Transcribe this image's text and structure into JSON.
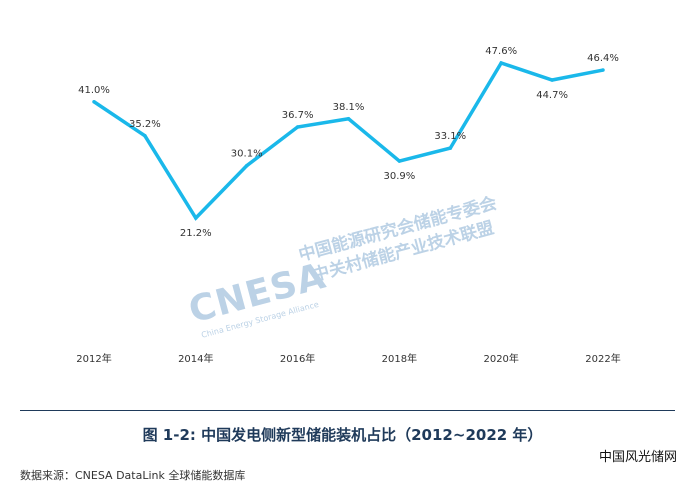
{
  "chart_data": {
    "type": "line",
    "x": [
      2012,
      2013,
      2014,
      2015,
      2016,
      2017,
      2018,
      2019,
      2020,
      2021,
      2022
    ],
    "values": [
      41.0,
      35.2,
      21.2,
      30.1,
      36.7,
      38.1,
      30.9,
      33.1,
      47.6,
      44.7,
      46.4
    ],
    "data_labels": [
      "41.0%",
      "35.2%",
      "21.2%",
      "30.1%",
      "36.7%",
      "38.1%",
      "30.9%",
      "33.1%",
      "47.6%",
      "44.7%",
      "46.4%"
    ],
    "tick_labels": [
      "2012年",
      "2014年",
      "2016年",
      "2018年",
      "2020年",
      "2022年"
    ],
    "tick_years": [
      2012,
      2014,
      2016,
      2018,
      2020,
      2022
    ],
    "color": "#1ab8ea",
    "grid": false,
    "legend": "none"
  },
  "caption": "图 1-2: 中国发电侧新型储能装机占比（2012~2022 年）",
  "source": "数据来源：CNESA DataLink 全球储能数据库",
  "site_mark": "中国风光储网",
  "watermark": {
    "logo": "CNESA",
    "subtitle": "China Energy Storage Alliance",
    "line1": "中国能源研究会储能专委会",
    "line2": "中关村储能产业技术联盟"
  }
}
